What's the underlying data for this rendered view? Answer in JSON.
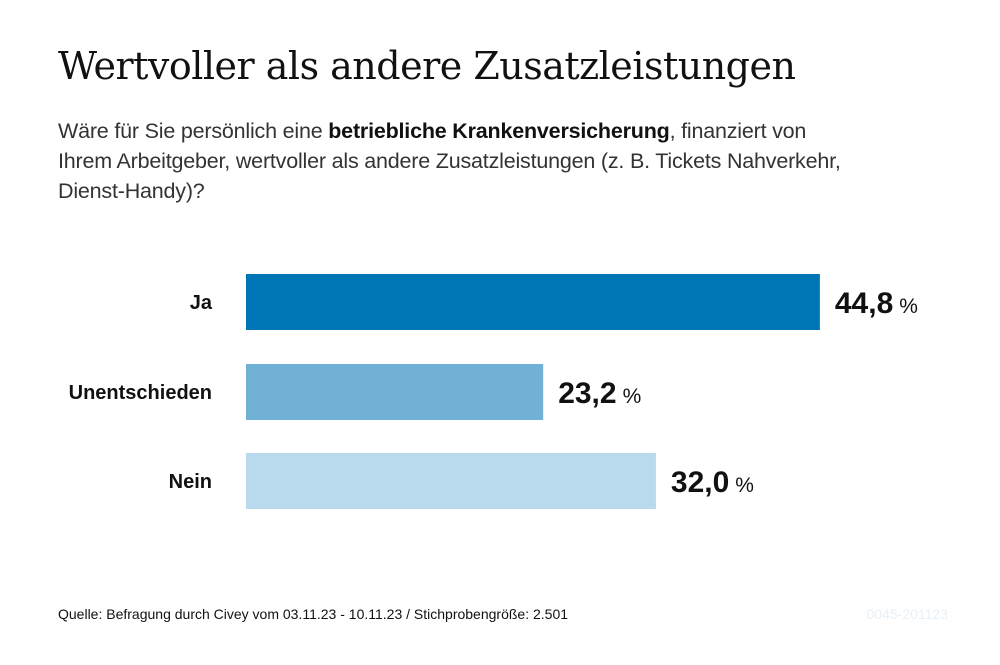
{
  "title": "Wertvoller als andere Zusatzleistungen",
  "subtitle": {
    "pre": "Wäre für Sie persönlich eine ",
    "bold": "betriebliche Krankenversicherung",
    "post": ", finanziert von Ihrem Arbeitgeber, wertvoller als andere Zusatzleistungen (z. B. Tickets Nahverkehr, Dienst-Handy)?"
  },
  "chart_data": {
    "type": "bar",
    "orientation": "horizontal",
    "categories": [
      "Ja",
      "Unentschieden",
      "Nein"
    ],
    "values": [
      44.8,
      23.2,
      32.0
    ],
    "value_labels": [
      "44,8",
      "23,2",
      "32,0"
    ],
    "unit": "%",
    "colors": [
      "#0075b6",
      "#72b1d6",
      "#b9d9ec"
    ],
    "grid": false,
    "legend": "none"
  },
  "footer": {
    "source": "Quelle: Befragung durch Civey vom 03.11.23 - 10.11.23 / Stichprobengröße: 2.501",
    "code": "0045-201123"
  }
}
